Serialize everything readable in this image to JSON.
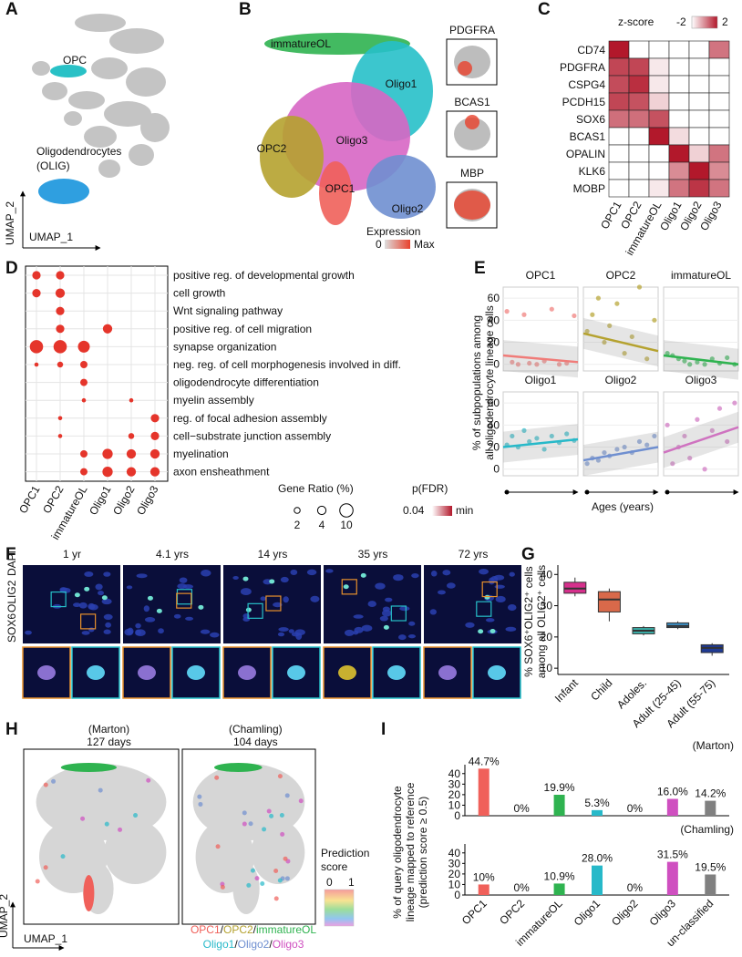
{
  "panel_a": {
    "letter": "A",
    "labels": [
      "OPC",
      "Oligodendrocytes",
      "(OLIG)"
    ],
    "y_axis": "UMAP_2",
    "x_axis": "UMAP_1"
  },
  "panel_b": {
    "letter": "B",
    "clusters": [
      {
        "name": "immatureOL",
        "color": "#2fb350"
      },
      {
        "name": "Oligo1",
        "color": "#27c0c9"
      },
      {
        "name": "Oligo3",
        "color": "#d766c4"
      },
      {
        "name": "OPC2",
        "color": "#b5a22f"
      },
      {
        "name": "OPC1",
        "color": "#f0605a"
      },
      {
        "name": "Oligo2",
        "color": "#6f8fd0"
      }
    ],
    "insets": [
      "PDGFRA",
      "BCAS1",
      "MBP"
    ],
    "legend_title": "Expression",
    "legend_min": 0,
    "legend_max": "Max"
  },
  "panel_c": {
    "letter": "C",
    "type": "heatmap",
    "legend_title": "z-score",
    "legend_min": -2,
    "legend_max": 2,
    "rows": [
      "CD74",
      "PDGFRA",
      "CSPG4",
      "PCDH15",
      "SOX6",
      "BCAS1",
      "OPALIN",
      "KLK6",
      "MOBP"
    ],
    "columns": [
      "OPC1",
      "OPC2",
      "immatureOL",
      "Oligo1",
      "Oligo2",
      "Oligo3"
    ],
    "values": [
      [
        2,
        -2,
        -2,
        -2,
        -2,
        0.4
      ],
      [
        1.2,
        1.2,
        -1.6,
        -2,
        -2,
        -2
      ],
      [
        1.1,
        1.6,
        -1.6,
        -2,
        -2,
        -2
      ],
      [
        1.2,
        1,
        -1.2,
        -2,
        -2,
        -2
      ],
      [
        0.5,
        0.5,
        1,
        -2,
        -2,
        -2
      ],
      [
        -2,
        -2,
        2,
        -1.4,
        -2,
        -2
      ],
      [
        -2,
        -2,
        -2,
        2,
        -1.2,
        0.4
      ],
      [
        -2,
        -2,
        -2,
        0,
        2,
        0
      ],
      [
        -2,
        -2,
        -1.6,
        0.4,
        1.5,
        0.4
      ]
    ]
  },
  "panel_d": {
    "letter": "D",
    "type": "dot",
    "terms": [
      "positive reg. of developmental growth",
      "cell growth",
      "Wnt signaling pathway",
      "positive reg. of cell migration",
      "synapse organization",
      "neg. reg. of cell morphogenesis involved in diff.",
      "oligodendrocyte differentiation",
      "myelin assembly",
      "reg. of focal adhesion assembly",
      "cell−substrate junction assembly",
      "myelination",
      "axon ensheathment"
    ],
    "columns": [
      "OPC1",
      "OPC2",
      "immatureOL",
      "Oligo1",
      "Oligo2",
      "Oligo3"
    ],
    "values": [
      [
        4,
        4,
        null,
        null,
        null,
        null
      ],
      [
        4,
        5,
        null,
        null,
        null,
        null
      ],
      [
        null,
        4,
        null,
        null,
        null,
        null
      ],
      [
        null,
        4,
        null,
        5,
        null,
        null
      ],
      [
        10,
        10,
        8,
        null,
        null,
        null
      ],
      [
        1,
        2,
        3,
        null,
        null,
        null
      ],
      [
        null,
        null,
        3,
        null,
        null,
        null
      ],
      [
        null,
        null,
        1,
        null,
        1,
        null
      ],
      [
        null,
        1,
        null,
        null,
        null,
        4
      ],
      [
        null,
        1,
        null,
        null,
        2,
        4
      ],
      [
        null,
        null,
        3,
        6,
        5,
        5
      ],
      [
        null,
        null,
        3,
        6,
        5,
        5
      ]
    ],
    "color": "#e5352b",
    "size_legend_title": "Gene Ratio (%)",
    "size_legend": [
      2,
      4,
      10
    ],
    "color_legend_title": "p(FDR)",
    "color_legend_max": 0.04,
    "color_legend_min": "min"
  },
  "panel_e": {
    "letter": "E",
    "type": "scatter",
    "ylabel": [
      "% of subpopulations among",
      "all oligodendrocyte lineage cells"
    ],
    "xlabel": "Ages (years)",
    "ylim": [
      -6,
      70
    ],
    "xlim": [
      0,
      1
    ],
    "yticks": [
      0,
      20,
      40,
      60
    ],
    "facets": [
      {
        "name": "OPC1",
        "color": "#f07b78",
        "x": [
          0.05,
          0.12,
          0.2,
          0.28,
          0.35,
          0.45,
          0.55,
          0.65,
          0.75,
          0.85,
          0.95
        ],
        "values": [
          48,
          2,
          0,
          45,
          1,
          0,
          3,
          50,
          0,
          1,
          44
        ],
        "fit": [
          8,
          2
        ]
      },
      {
        "name": "OPC2",
        "color": "#b5a22f",
        "x": [
          0.05,
          0.12,
          0.2,
          0.28,
          0.35,
          0.45,
          0.55,
          0.65,
          0.75,
          0.85,
          0.95
        ],
        "values": [
          30,
          45,
          60,
          20,
          35,
          55,
          10,
          25,
          70,
          5,
          40
        ],
        "fit": [
          28,
          12
        ]
      },
      {
        "name": "immatureOL",
        "color": "#2fb350",
        "x": [
          0.05,
          0.12,
          0.2,
          0.28,
          0.35,
          0.45,
          0.55,
          0.65,
          0.75,
          0.85,
          0.95
        ],
        "values": [
          10,
          8,
          5,
          3,
          0,
          2,
          0,
          5,
          1,
          6,
          0
        ],
        "fit": [
          8,
          0
        ]
      },
      {
        "name": "Oligo1",
        "color": "#27b9c9",
        "x": [
          0.05,
          0.12,
          0.2,
          0.28,
          0.35,
          0.45,
          0.55,
          0.65,
          0.75,
          0.85,
          0.95
        ],
        "values": [
          22,
          30,
          20,
          35,
          25,
          28,
          18,
          30,
          24,
          32,
          26
        ],
        "fit": [
          20,
          27
        ]
      },
      {
        "name": "Oligo2",
        "color": "#6f8fd0",
        "x": [
          0.05,
          0.12,
          0.2,
          0.28,
          0.35,
          0.45,
          0.55,
          0.65,
          0.75,
          0.85,
          0.95
        ],
        "values": [
          5,
          10,
          8,
          15,
          12,
          18,
          20,
          15,
          25,
          22,
          30
        ],
        "fit": [
          8,
          20
        ]
      },
      {
        "name": "Oligo3",
        "color": "#cf73c0",
        "x": [
          0.05,
          0.12,
          0.2,
          0.28,
          0.35,
          0.45,
          0.55,
          0.65,
          0.75,
          0.85,
          0.95
        ],
        "values": [
          40,
          5,
          20,
          30,
          10,
          45,
          0,
          35,
          55,
          25,
          60
        ],
        "fit": [
          15,
          38
        ]
      }
    ]
  },
  "panel_f": {
    "letter": "F",
    "ages": [
      "1 yr",
      "4.1 yrs",
      "14 yrs",
      "35 yrs",
      "72 yrs"
    ],
    "channels": [
      {
        "name": "SOX6",
        "color": "#e0202a"
      },
      {
        "name": "OLIG2",
        "color": "#20b030"
      },
      {
        "name": "DAPI",
        "color": "#2030d0"
      }
    ]
  },
  "panel_g": {
    "letter": "G",
    "type": "box",
    "ylabel": [
      "% SOX6⁺OLIG2⁺ cells",
      "among all OLIG2⁺ cells"
    ],
    "ylim": [
      8,
      43
    ],
    "yticks": [
      10,
      20,
      30,
      40
    ],
    "categories": [
      "Infant",
      "Child",
      "Adoles.",
      "Adult (25-45)",
      "Adult (55-75)"
    ],
    "colors": [
      "#d6308c",
      "#d9694a",
      "#3aafa9",
      "#3b8fc4",
      "#1f3a93"
    ],
    "boxes": [
      {
        "min": 33,
        "q1": 34,
        "median": 35.5,
        "q3": 37.5,
        "max": 39
      },
      {
        "min": 25,
        "q1": 28,
        "median": 32,
        "q3": 34.5,
        "max": 35.5
      },
      {
        "min": 20.5,
        "q1": 21,
        "median": 22,
        "q3": 23,
        "max": 23.5
      },
      {
        "min": 22.5,
        "q1": 23,
        "median": 23.5,
        "q3": 24.5,
        "max": 25
      },
      {
        "min": 14,
        "q1": 15,
        "median": 16.5,
        "q3": 17.5,
        "max": 18
      }
    ]
  },
  "panel_h": {
    "letter": "H",
    "datasets": [
      {
        "name": "(Marton)",
        "age": "127 days"
      },
      {
        "name": "(Chamling)",
        "age": "104 days"
      }
    ],
    "legend_title": [
      "Prediction",
      "score"
    ],
    "scale_min": 0,
    "scale_max": 1,
    "y_axis": "UMAP_2",
    "x_axis": "UMAP_1",
    "clusters": [
      {
        "name": "OPC1",
        "color": "#f0605a"
      },
      {
        "name": "OPC2",
        "color": "#b5a22f"
      },
      {
        "name": "immatureOL",
        "color": "#2fb350"
      },
      {
        "name": "Oligo1",
        "color": "#27b9c9"
      },
      {
        "name": "Oligo2",
        "color": "#6f8fd0"
      },
      {
        "name": "Oligo3",
        "color": "#cf4fc0"
      }
    ],
    "separator": "/"
  },
  "panel_i": {
    "letter": "I",
    "type": "bar",
    "ylabel": [
      "% of query oligodendrocyte",
      "lineage mapped to reference",
      "(prediction score ≥ 0.5)"
    ],
    "ylim": [
      0,
      45
    ],
    "yticks": [
      0,
      10,
      20,
      30,
      40
    ],
    "categories": [
      "OPC1",
      "OPC2",
      "immatureOL",
      "Oligo1",
      "Oligo2",
      "Oligo3",
      "un-classified"
    ],
    "colors": [
      "#f0605a",
      "#b5a22f",
      "#2fb350",
      "#27b9c9",
      "#6f8fd0",
      "#cf4fc0",
      "#808080"
    ],
    "charts": [
      {
        "source": "(Marton)",
        "values": [
          44.7,
          0,
          19.9,
          5.3,
          0,
          16.0,
          14.2
        ],
        "value_labels": [
          "44.7%",
          "0%",
          "19.9%",
          "5.3%",
          "0%",
          "16.0%",
          "14.2%"
        ]
      },
      {
        "source": "(Chamling)",
        "values": [
          10,
          0,
          10.9,
          28.0,
          0,
          31.5,
          19.5
        ],
        "value_labels": [
          "10%",
          "0%",
          "10.9%",
          "28.0%",
          "0%",
          "31.5%",
          "19.5%"
        ]
      }
    ]
  }
}
